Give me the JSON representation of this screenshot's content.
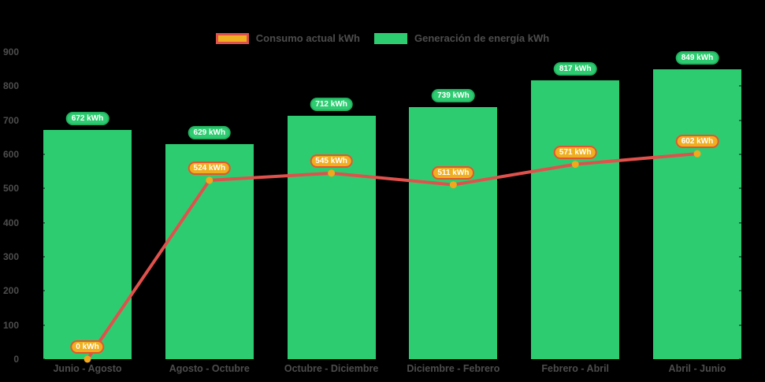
{
  "chart_data": {
    "type": "bar",
    "subtype": "bar-line-combo",
    "title": "",
    "categories": [
      "Junio - Agosto",
      "Agosto - Octubre",
      "Octubre - Diciembre",
      "Diciembre - Febrero",
      "Febrero - Abril",
      "Abril - Junio"
    ],
    "series": [
      {
        "name": "Consumo actual kWh",
        "type": "line",
        "values": [
          0,
          524,
          545,
          511,
          571,
          602
        ],
        "labels": [
          "0 kWh",
          "524 kWh",
          "545 kWh",
          "511 kWh",
          "571 kWh",
          "602 kWh"
        ],
        "line_color": "#e0514c",
        "point_color": "#f2a81d",
        "label_fill": "#efaf20",
        "label_border": "#e2572e"
      },
      {
        "name": "Generación de energía kWh",
        "type": "bar",
        "values": [
          672,
          629,
          712,
          739,
          817,
          849
        ],
        "labels": [
          "672 kWh",
          "629 kWh",
          "712 kWh",
          "739 kWh",
          "817 kWh",
          "849 kWh"
        ],
        "bar_color": "#2ecc71",
        "label_fill": "#2ecc71",
        "label_border": "#22b25f"
      }
    ],
    "value_suffix": "kWh",
    "y_axis": {
      "min": 0,
      "max": 900,
      "step": 100,
      "tick_labels": [
        "0",
        "100",
        "200",
        "300",
        "400",
        "500",
        "600",
        "700",
        "800",
        "900"
      ]
    },
    "legend_position": "top",
    "grid": false,
    "axis_text_color": "#4d4d4d",
    "background": "#000000"
  }
}
